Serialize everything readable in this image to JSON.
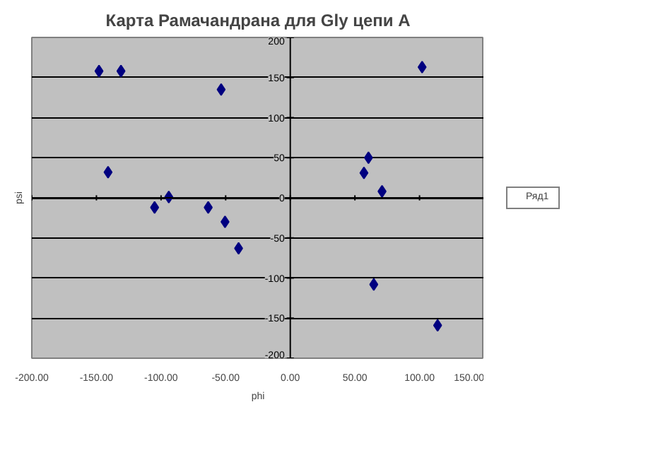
{
  "chart_data": {
    "type": "scatter",
    "title": "Карта Рамачандрана для Gly цепи A",
    "xlabel": "phi",
    "ylabel": "psi",
    "x": [
      -148,
      -131,
      -53.5,
      -141,
      -94,
      -105,
      -63.5,
      -50.5,
      -40,
      102,
      60.5,
      57,
      71,
      64.6,
      114
    ],
    "series": [
      {
        "name": "Ряд1",
        "color": "#000080",
        "values": [
          158,
          158,
          135,
          32,
          1,
          -12,
          -12,
          -30,
          -63,
          163,
          50,
          31,
          8,
          -108,
          -159
        ]
      }
    ],
    "xlim": [
      -200,
      150
    ],
    "ylim": [
      -200,
      200
    ],
    "xticks": [
      {
        "value": -200,
        "label": "-200.00"
      },
      {
        "value": -150,
        "label": "-150.00"
      },
      {
        "value": -100,
        "label": "-100.00"
      },
      {
        "value": -50,
        "label": "-50.00"
      },
      {
        "value": 0,
        "label": "0.00"
      },
      {
        "value": 50,
        "label": "50.00"
      },
      {
        "value": 100,
        "label": "100.00"
      },
      {
        "value": 150,
        "label": "150.00"
      }
    ],
    "yticks": [
      -200,
      -150,
      -100,
      -50,
      0,
      50,
      100,
      150,
      200
    ],
    "grid": "y",
    "legend": "right",
    "marker": "diamond"
  }
}
